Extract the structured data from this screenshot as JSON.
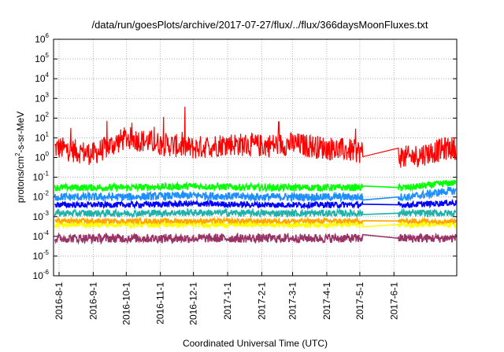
{
  "chart_data": {
    "type": "line",
    "title": "/data/run/goesPlots/archive/2017-07-27/flux/../flux/366daysMoonFluxes.txt",
    "xlabel": "Coordinated Universal Time (UTC)",
    "ylabel": "protons/cm2-s-sr-MeV",
    "yscale": "log",
    "ylim": [
      1e-06,
      1000000.0
    ],
    "xlim": [
      "2016-07-27",
      "2017-07-28"
    ],
    "grid": true,
    "legend": "none",
    "x_ticks": [
      "2016-8-1",
      "2016-9-1",
      "2016-10-1",
      "2016-11-1",
      "2016-12-1",
      "2017-1-1",
      "2017-2-1",
      "2017-3-1",
      "2017-4-1",
      "2017-5-1",
      "2017-6-1"
    ],
    "y_ticks": [
      {
        "base": "10",
        "exp": "-6"
      },
      {
        "base": "10",
        "exp": "-5"
      },
      {
        "base": "10",
        "exp": "-4"
      },
      {
        "base": "10",
        "exp": "-3"
      },
      {
        "base": "10",
        "exp": "-2"
      },
      {
        "base": "10",
        "exp": "-1"
      },
      {
        "base": "10",
        "exp": "0"
      },
      {
        "base": "10",
        "exp": "1"
      },
      {
        "base": "10",
        "exp": "2"
      },
      {
        "base": "10",
        "exp": "3"
      },
      {
        "base": "10",
        "exp": "4"
      },
      {
        "base": "10",
        "exp": "5"
      },
      {
        "base": "10",
        "exp": "6"
      }
    ],
    "data_gap": [
      "2017-05-04",
      "2017-06-05"
    ],
    "series": [
      {
        "color": "#ff0000",
        "baseline": 3.0,
        "x": [
          "2016-08-01",
          "2016-09-01",
          "2016-10-01",
          "2016-11-01",
          "2016-12-01",
          "2017-01-01",
          "2017-02-01",
          "2017-03-01",
          "2017-04-01",
          "2017-05-01",
          "2017-06-15",
          "2017-07-20"
        ],
        "y": [
          3,
          1.5,
          10,
          5,
          3,
          5,
          4,
          5,
          3,
          2,
          1,
          3
        ]
      },
      {
        "color": "#00ff00",
        "baseline": 0.03,
        "x": [
          "2016-08-01",
          "2016-10-01",
          "2016-12-01",
          "2017-02-01",
          "2017-04-01",
          "2017-05-01",
          "2017-06-15",
          "2017-07-20"
        ],
        "y": [
          0.03,
          0.03,
          0.035,
          0.03,
          0.03,
          0.03,
          0.03,
          0.05
        ]
      },
      {
        "color": "#1e8fff",
        "baseline": 0.01,
        "x": [
          "2016-08-01",
          "2016-10-01",
          "2016-12-01",
          "2017-02-01",
          "2017-04-01",
          "2017-05-01",
          "2017-06-15",
          "2017-07-20"
        ],
        "y": [
          0.01,
          0.01,
          0.012,
          0.01,
          0.01,
          0.01,
          0.01,
          0.02
        ]
      },
      {
        "color": "#0000ff",
        "baseline": 0.004,
        "x": [
          "2016-08-01",
          "2016-10-01",
          "2016-12-01",
          "2017-02-01",
          "2017-04-01",
          "2017-05-01",
          "2017-06-15",
          "2017-07-20"
        ],
        "y": [
          0.004,
          0.004,
          0.0045,
          0.004,
          0.004,
          0.004,
          0.004,
          0.005
        ]
      },
      {
        "color": "#20b2aa",
        "baseline": 0.0015,
        "x": [
          "2016-08-01",
          "2016-10-01",
          "2016-12-01",
          "2017-02-01",
          "2017-04-01",
          "2017-05-01",
          "2017-06-15",
          "2017-07-20"
        ],
        "y": [
          0.0015,
          0.0015,
          0.0016,
          0.0015,
          0.0015,
          0.0015,
          0.0015,
          0.0015
        ]
      },
      {
        "color": "#ffff00",
        "baseline": 0.0004,
        "x": [
          "2016-08-01",
          "2016-10-01",
          "2016-12-01",
          "2017-02-01",
          "2017-04-01",
          "2017-05-01",
          "2017-06-15",
          "2017-07-20"
        ],
        "y": [
          0.0004,
          0.0004,
          0.0004,
          0.0004,
          0.0004,
          0.0004,
          0.0004,
          0.0004
        ]
      },
      {
        "color": "#ffa500",
        "baseline": 0.0006,
        "x": [
          "2016-08-01",
          "2016-10-01",
          "2016-12-01",
          "2017-02-01",
          "2017-04-01",
          "2017-05-01",
          "2017-06-15",
          "2017-07-20"
        ],
        "y": [
          0.0006,
          0.0006,
          0.0006,
          0.0006,
          0.0006,
          0.0006,
          0.0006,
          0.0006
        ]
      },
      {
        "color": "#993366",
        "baseline": 8e-05,
        "x": [
          "2016-08-01",
          "2016-10-01",
          "2016-12-01",
          "2017-02-01",
          "2017-04-01",
          "2017-05-01",
          "2017-06-15",
          "2017-07-20"
        ],
        "y": [
          8e-05,
          8e-05,
          8e-05,
          8e-05,
          8e-05,
          8e-05,
          8e-05,
          8e-05
        ]
      }
    ]
  }
}
